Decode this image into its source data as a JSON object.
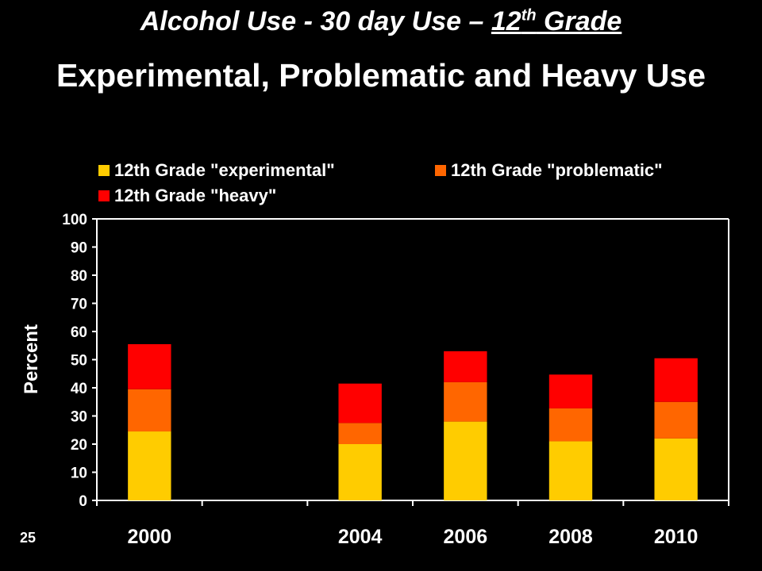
{
  "title": {
    "line1_prefix": "Alcohol Use - 30 day Use – ",
    "line1_grade_num": "12",
    "line1_grade_sup": "th",
    "line1_grade_word": " Grade",
    "line2": "Experimental, Problematic and Heavy Use"
  },
  "page_number": "25",
  "colors": {
    "background": "#000000",
    "experimental": "#FFCC00",
    "problematic": "#FF6600",
    "heavy": "#FF0000",
    "axis": "#FFFFFF"
  },
  "chart_data": {
    "type": "bar",
    "stacked": true,
    "categories": [
      "2000",
      "",
      "2004",
      "2006",
      "2008",
      "2010"
    ],
    "series": [
      {
        "name": "12th Grade \"experimental\"",
        "values": [
          24.5,
          null,
          20,
          28,
          21,
          22
        ]
      },
      {
        "name": "12th Grade \"problematic\"",
        "values": [
          15,
          null,
          7.5,
          14,
          11.7,
          13
        ]
      },
      {
        "name": "12th Grade \"heavy\"",
        "values": [
          16,
          null,
          14,
          11,
          12,
          15.5
        ]
      }
    ],
    "xlabel": "",
    "ylabel": "Percent",
    "ylim": [
      0,
      100
    ],
    "yticks": [
      "0",
      "10",
      "20",
      "30",
      "40",
      "50",
      "60",
      "70",
      "80",
      "90",
      "100"
    ],
    "grid": false,
    "legend_position": "top"
  }
}
